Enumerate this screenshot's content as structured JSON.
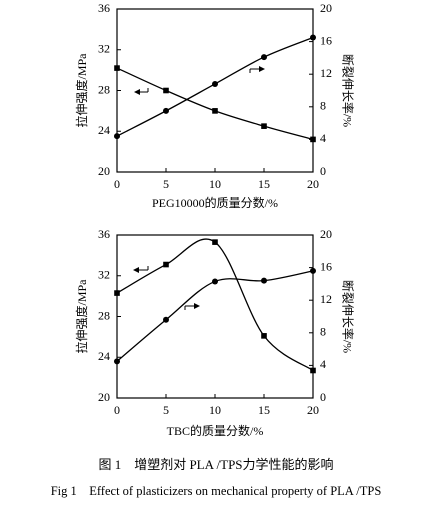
{
  "chart_data": [
    {
      "type": "line",
      "xlabel": "PEG10000的质量分数/%",
      "ylabel": "拉伸强度/MPa",
      "y2label": "断裂伸长率/%",
      "x": [
        0,
        5,
        10,
        15,
        20
      ],
      "xlim": [
        0,
        20
      ],
      "xticks": [
        0,
        5,
        10,
        15,
        20
      ],
      "ylim": [
        20,
        36
      ],
      "yticks": [
        20,
        24,
        28,
        32,
        36
      ],
      "y2lim": [
        0,
        20
      ],
      "y2ticks": [
        0,
        4,
        8,
        12,
        16,
        20
      ],
      "series": [
        {
          "color": "#000000",
          "marker": "square",
          "values": [
            30.2,
            28,
            26,
            24.5,
            23.2
          ]
        },
        {
          "color": "#000000",
          "marker": "circle",
          "axis": "y2",
          "values": [
            4.4,
            7.5,
            10.8,
            14.1,
            16.5
          ]
        }
      ]
    },
    {
      "type": "line",
      "xlabel": "TBC的质量分数/%",
      "ylabel": "拉伸强度/MPa",
      "y2label": "断裂伸长率/%",
      "x": [
        0,
        5,
        10,
        15,
        20
      ],
      "xlim": [
        0,
        20
      ],
      "xticks": [
        0,
        5,
        10,
        15,
        20
      ],
      "ylim": [
        20,
        36
      ],
      "yticks": [
        20,
        24,
        28,
        32,
        36
      ],
      "y2lim": [
        0,
        20
      ],
      "y2ticks": [
        0,
        4,
        8,
        12,
        16,
        20
      ],
      "series": [
        {
          "color": "#000000",
          "marker": "square",
          "values": [
            30.3,
            33.1,
            35.3,
            26.1,
            22.7
          ]
        },
        {
          "color": "#000000",
          "marker": "circle",
          "axis": "y2",
          "values": [
            4.5,
            9.6,
            14.3,
            14.4,
            15.6
          ]
        }
      ]
    }
  ],
  "caption_cn": "图 1　增塑剂对 PLA /TPS力学性能的影响",
  "caption_en": "Fig 1　Effect of plasticizers on mechanical property of PLA /TPS"
}
